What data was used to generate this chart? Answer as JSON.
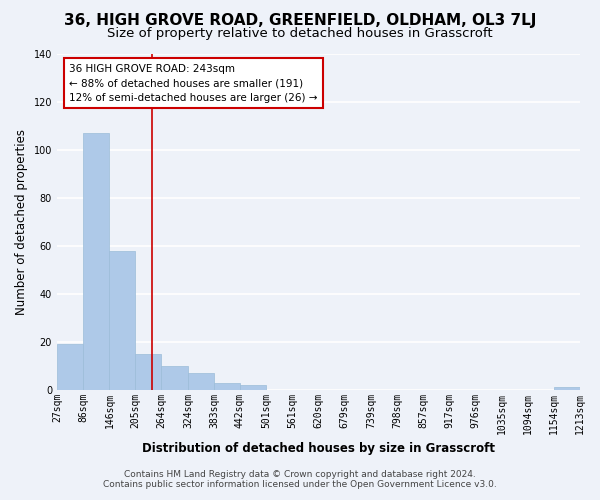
{
  "title": "36, HIGH GROVE ROAD, GREENFIELD, OLDHAM, OL3 7LJ",
  "subtitle": "Size of property relative to detached houses in Grasscroft",
  "xlabel": "Distribution of detached houses by size in Grasscroft",
  "ylabel": "Number of detached properties",
  "bar_edges": [
    27,
    86,
    146,
    205,
    264,
    324,
    383,
    442,
    501,
    561,
    620,
    679,
    739,
    798,
    857,
    917,
    976,
    1035,
    1094,
    1154,
    1213
  ],
  "bar_heights": [
    19,
    107,
    58,
    15,
    10,
    7,
    3,
    2,
    0,
    0,
    0,
    0,
    0,
    0,
    0,
    0,
    0,
    0,
    0,
    1
  ],
  "bar_color": "#aec9e8",
  "bar_edge_color": "#9bbcd8",
  "reference_line_x": 243,
  "reference_line_color": "#cc0000",
  "annotation_title": "36 HIGH GROVE ROAD: 243sqm",
  "annotation_line1": "← 88% of detached houses are smaller (191)",
  "annotation_line2": "12% of semi-detached houses are larger (26) →",
  "annotation_box_color": "#ffffff",
  "annotation_box_edge_color": "#cc0000",
  "ylim": [
    0,
    140
  ],
  "yticks": [
    0,
    20,
    40,
    60,
    80,
    100,
    120,
    140
  ],
  "tick_labels": [
    "27sqm",
    "86sqm",
    "146sqm",
    "205sqm",
    "264sqm",
    "324sqm",
    "383sqm",
    "442sqm",
    "501sqm",
    "561sqm",
    "620sqm",
    "679sqm",
    "739sqm",
    "798sqm",
    "857sqm",
    "917sqm",
    "976sqm",
    "1035sqm",
    "1094sqm",
    "1154sqm",
    "1213sqm"
  ],
  "footer_line1": "Contains HM Land Registry data © Crown copyright and database right 2024.",
  "footer_line2": "Contains public sector information licensed under the Open Government Licence v3.0.",
  "background_color": "#eef2f9",
  "grid_color": "#ffffff",
  "title_fontsize": 11,
  "subtitle_fontsize": 9.5,
  "axis_label_fontsize": 8.5,
  "tick_fontsize": 7,
  "footer_fontsize": 6.5
}
